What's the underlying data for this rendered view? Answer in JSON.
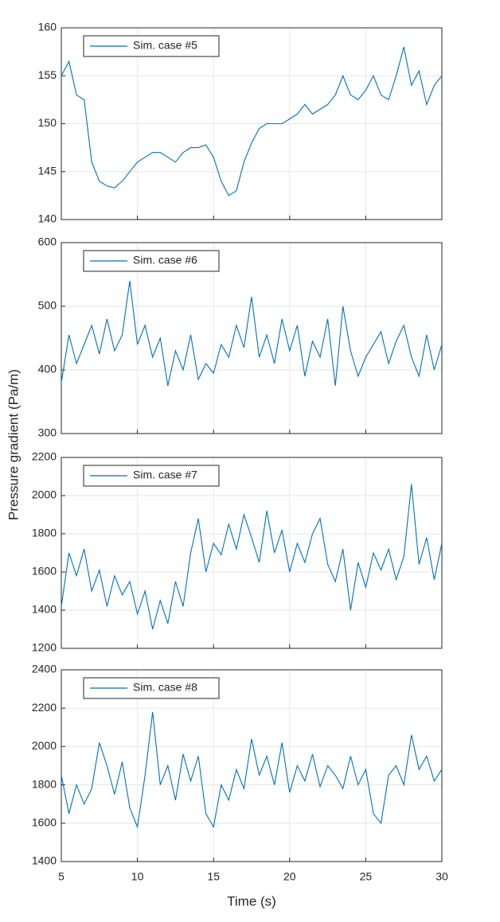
{
  "chart_data": [
    {
      "type": "line",
      "ylabel": "Pressure gradient (Pa/m)",
      "x": [
        5,
        5.5,
        6,
        6.5,
        7,
        7.5,
        8,
        8.5,
        9,
        9.5,
        10,
        10.5,
        11,
        11.5,
        12,
        12.5,
        13,
        13.5,
        14,
        14.5,
        15,
        15.5,
        16,
        16.5,
        17,
        17.5,
        18,
        18.5,
        19,
        19.5,
        20,
        20.5,
        21,
        21.5,
        22,
        22.5,
        23,
        23.5,
        24,
        24.5,
        25,
        25.5,
        26,
        26.5,
        27,
        27.5,
        28,
        28.5,
        29,
        29.5,
        30
      ],
      "series": [
        {
          "name": "Sim. case #5",
          "color": "#0072bd",
          "values": [
            155,
            156.5,
            153,
            152.5,
            146,
            144,
            143.5,
            143.3,
            144,
            145,
            146,
            146.5,
            147,
            147,
            146.5,
            146,
            147,
            147.5,
            147.5,
            147.8,
            146.5,
            144,
            142.5,
            143,
            146,
            148,
            149.5,
            150,
            150,
            150,
            150.5,
            151,
            152,
            151,
            151.5,
            152,
            153,
            155,
            153,
            152.5,
            153.5,
            155,
            153,
            152.5,
            155,
            158,
            154,
            155.5,
            152,
            154,
            155
          ]
        }
      ],
      "xlim": [
        5,
        30
      ],
      "xticks": [
        5,
        10,
        15,
        20,
        25,
        30
      ],
      "ylim": [
        140,
        160
      ],
      "yticks": [
        140,
        145,
        150,
        155,
        160
      ],
      "grid": true
    },
    {
      "type": "line",
      "x": [
        5,
        5.5,
        6,
        6.5,
        7,
        7.5,
        8,
        8.5,
        9,
        9.5,
        10,
        10.5,
        11,
        11.5,
        12,
        12.5,
        13,
        13.5,
        14,
        14.5,
        15,
        15.5,
        16,
        16.5,
        17,
        17.5,
        18,
        18.5,
        19,
        19.5,
        20,
        20.5,
        21,
        21.5,
        22,
        22.5,
        23,
        23.5,
        24,
        24.5,
        25,
        25.5,
        26,
        26.5,
        27,
        27.5,
        28,
        28.5,
        29,
        29.5,
        30
      ],
      "series": [
        {
          "name": "Sim. case #6",
          "color": "#0072bd",
          "values": [
            380,
            455,
            410,
            440,
            470,
            425,
            480,
            430,
            455,
            540,
            440,
            470,
            420,
            450,
            375,
            430,
            400,
            455,
            385,
            410,
            395,
            440,
            420,
            470,
            435,
            515,
            420,
            455,
            410,
            480,
            430,
            470,
            390,
            445,
            420,
            480,
            375,
            500,
            430,
            390,
            420,
            440,
            460,
            410,
            445,
            470,
            420,
            390,
            455,
            400,
            440
          ]
        }
      ],
      "xlim": [
        5,
        30
      ],
      "xticks": [
        5,
        10,
        15,
        20,
        25,
        30
      ],
      "ylim": [
        300,
        600
      ],
      "yticks": [
        300,
        400,
        500,
        600
      ],
      "grid": true
    },
    {
      "type": "line",
      "x": [
        5,
        5.5,
        6,
        6.5,
        7,
        7.5,
        8,
        8.5,
        9,
        9.5,
        10,
        10.5,
        11,
        11.5,
        12,
        12.5,
        13,
        13.5,
        14,
        14.5,
        15,
        15.5,
        16,
        16.5,
        17,
        17.5,
        18,
        18.5,
        19,
        19.5,
        20,
        20.5,
        21,
        21.5,
        22,
        22.5,
        23,
        23.5,
        24,
        24.5,
        25,
        25.5,
        26,
        26.5,
        27,
        27.5,
        28,
        28.5,
        29,
        29.5,
        30
      ],
      "series": [
        {
          "name": "Sim. case #7",
          "color": "#0072bd",
          "values": [
            1420,
            1700,
            1580,
            1720,
            1500,
            1610,
            1420,
            1580,
            1480,
            1550,
            1380,
            1500,
            1300,
            1450,
            1330,
            1550,
            1420,
            1700,
            1880,
            1600,
            1750,
            1690,
            1850,
            1720,
            1900,
            1780,
            1650,
            1920,
            1700,
            1820,
            1600,
            1750,
            1650,
            1800,
            1880,
            1640,
            1550,
            1720,
            1400,
            1650,
            1520,
            1700,
            1610,
            1720,
            1560,
            1680,
            2060,
            1640,
            1780,
            1560,
            1750
          ]
        }
      ],
      "xlim": [
        5,
        30
      ],
      "xticks": [
        5,
        10,
        15,
        20,
        25,
        30
      ],
      "ylim": [
        1200,
        2200
      ],
      "yticks": [
        1200,
        1400,
        1600,
        1800,
        2000,
        2200
      ],
      "grid": true
    },
    {
      "type": "line",
      "xlabel": "Time (s)",
      "x": [
        5,
        5.5,
        6,
        6.5,
        7,
        7.5,
        8,
        8.5,
        9,
        9.5,
        10,
        10.5,
        11,
        11.5,
        12,
        12.5,
        13,
        13.5,
        14,
        14.5,
        15,
        15.5,
        16,
        16.5,
        17,
        17.5,
        18,
        18.5,
        19,
        19.5,
        20,
        20.5,
        21,
        21.5,
        22,
        22.5,
        23,
        23.5,
        24,
        24.5,
        25,
        25.5,
        26,
        26.5,
        27,
        27.5,
        28,
        28.5,
        29,
        29.5,
        30
      ],
      "series": [
        {
          "name": "Sim. case #8",
          "color": "#0072bd",
          "values": [
            1850,
            1650,
            1800,
            1700,
            1780,
            2020,
            1900,
            1750,
            1920,
            1680,
            1580,
            1850,
            2180,
            1800,
            1900,
            1720,
            1960,
            1820,
            1950,
            1650,
            1580,
            1800,
            1720,
            1880,
            1780,
            2040,
            1850,
            1950,
            1800,
            2020,
            1760,
            1900,
            1820,
            1960,
            1790,
            1900,
            1850,
            1780,
            1950,
            1800,
            1880,
            1650,
            1600,
            1850,
            1900,
            1800,
            2060,
            1880,
            1950,
            1820,
            1880
          ]
        }
      ],
      "xlim": [
        5,
        30
      ],
      "xticks": [
        5,
        10,
        15,
        20,
        25,
        30
      ],
      "ylim": [
        1400,
        2400
      ],
      "yticks": [
        1400,
        1600,
        1800,
        2000,
        2200,
        2400
      ],
      "grid": true
    }
  ]
}
